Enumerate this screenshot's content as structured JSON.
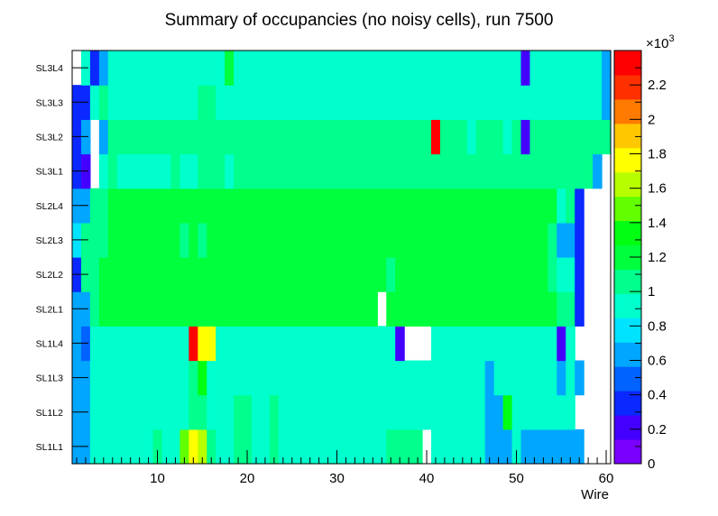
{
  "chart_data": {
    "type": "heatmap",
    "title": "Summary of occupancies (no noisy cells), run 7500",
    "xlabel": "Wire",
    "ylabel": "",
    "x_range": [
      0.5,
      60.5
    ],
    "xticks": [
      10,
      20,
      30,
      40,
      50,
      60
    ],
    "xtick_labels": [
      "10",
      "20",
      "30",
      "40",
      "50",
      "60"
    ],
    "y_categories": [
      "SL1L1",
      "SL1L2",
      "SL1L3",
      "SL1L4",
      "SL2L1",
      "SL2L2",
      "SL2L3",
      "SL2L4",
      "SL3L1",
      "SL3L2",
      "SL3L3",
      "SL3L4"
    ],
    "z_range": [
      0,
      2400
    ],
    "z_multiplier_label": "×10",
    "z_multiplier_exp": "3",
    "zticks": [
      0,
      200,
      400,
      600,
      800,
      1000,
      1200,
      1400,
      1600,
      1800,
      2000,
      2200
    ],
    "ztick_labels": [
      "0",
      "0.2",
      "0.4",
      "0.6",
      "0.8",
      "1",
      "1.2",
      "1.4",
      "1.6",
      "1.8",
      "2",
      "2.2"
    ],
    "palette": [
      "#7a00ff",
      "#4400ff",
      "#0a28ff",
      "#0062ff",
      "#00a6ff",
      "#00e3ff",
      "#00ffcd",
      "#00ff8c",
      "#00ff3d",
      "#00ff12",
      "#62ff00",
      "#b7ff00",
      "#ffff00",
      "#ffc700",
      "#ff7a00",
      "#ff3000",
      "#ff0000"
    ],
    "rows": [
      [
        700,
        600,
        850,
        900,
        950,
        950,
        950,
        950,
        950,
        1000,
        950,
        950,
        1450,
        1800,
        1650,
        1000,
        950,
        950,
        1000,
        1000,
        950,
        950,
        1000,
        950,
        950,
        950,
        950,
        950,
        950,
        950,
        950,
        950,
        950,
        900,
        950,
        1000,
        1000,
        1000,
        1000,
        null,
        850,
        950,
        950,
        950,
        950,
        950,
        700,
        650,
        700,
        950,
        650,
        650,
        650,
        650,
        650,
        650,
        600,
        null,
        null,
        null
      ],
      [
        650,
        650,
        850,
        900,
        950,
        950,
        950,
        950,
        950,
        950,
        950,
        950,
        950,
        1000,
        1000,
        950,
        950,
        950,
        1000,
        1000,
        950,
        950,
        1000,
        950,
        950,
        950,
        950,
        950,
        950,
        950,
        950,
        950,
        950,
        950,
        950,
        950,
        950,
        950,
        950,
        950,
        950,
        950,
        950,
        950,
        950,
        950,
        700,
        650,
        1350,
        950,
        950,
        850,
        850,
        850,
        850,
        850,
        null,
        null,
        null,
        null
      ],
      [
        650,
        650,
        850,
        950,
        950,
        950,
        950,
        950,
        950,
        950,
        950,
        950,
        950,
        1000,
        1400,
        950,
        950,
        950,
        950,
        950,
        950,
        950,
        950,
        950,
        950,
        950,
        950,
        950,
        950,
        950,
        950,
        950,
        950,
        950,
        950,
        950,
        950,
        950,
        950,
        950,
        950,
        950,
        950,
        950,
        950,
        950,
        700,
        950,
        950,
        950,
        850,
        850,
        850,
        850,
        700,
        850,
        650,
        null,
        null,
        null
      ],
      [
        700,
        500,
        850,
        900,
        850,
        850,
        950,
        950,
        950,
        950,
        950,
        950,
        950,
        2400,
        1750,
        1700,
        950,
        950,
        950,
        900,
        950,
        950,
        950,
        950,
        950,
        950,
        950,
        950,
        950,
        950,
        950,
        950,
        950,
        950,
        950,
        950,
        250,
        null,
        null,
        null,
        950,
        950,
        950,
        950,
        950,
        950,
        850,
        950,
        850,
        850,
        850,
        850,
        850,
        850,
        250,
        850,
        null,
        null,
        null,
        null
      ],
      [
        700,
        700,
        1100,
        1150,
        1250,
        1250,
        1250,
        1250,
        1250,
        1250,
        1250,
        1250,
        1250,
        1250,
        1250,
        1250,
        1250,
        1250,
        1250,
        1250,
        1250,
        1250,
        1250,
        1250,
        1250,
        1200,
        1250,
        1250,
        1250,
        1250,
        1250,
        1250,
        1250,
        1250,
        null,
        1250,
        1250,
        1200,
        1250,
        1250,
        1250,
        1250,
        1250,
        1250,
        1250,
        1250,
        1250,
        1250,
        1250,
        1250,
        1250,
        1250,
        1250,
        1250,
        1100,
        1100,
        350,
        null,
        null,
        null
      ],
      [
        350,
        1000,
        1100,
        1150,
        1250,
        1250,
        1200,
        1250,
        1250,
        1250,
        1250,
        1250,
        1250,
        1250,
        1250,
        1250,
        1250,
        1250,
        1250,
        1250,
        1250,
        1250,
        1250,
        1250,
        1250,
        1250,
        1250,
        1250,
        1250,
        1250,
        1250,
        1250,
        1250,
        1250,
        1250,
        1100,
        1250,
        1250,
        1250,
        1250,
        1250,
        1250,
        1250,
        1250,
        1250,
        1250,
        1250,
        1250,
        1250,
        1250,
        1250,
        1250,
        1250,
        1100,
        950,
        950,
        350,
        null,
        null,
        null
      ],
      [
        800,
        1100,
        1100,
        1100,
        1150,
        1150,
        1150,
        1150,
        1150,
        1200,
        1250,
        1250,
        1100,
        1200,
        1100,
        1250,
        1250,
        1250,
        1250,
        1250,
        1250,
        1250,
        1250,
        1250,
        1250,
        1250,
        1250,
        1250,
        1250,
        1250,
        1250,
        1250,
        1250,
        1250,
        1250,
        1250,
        1250,
        1250,
        1250,
        1250,
        1250,
        1250,
        1250,
        1250,
        1250,
        1250,
        1250,
        1250,
        1250,
        1250,
        1250,
        1250,
        1250,
        1100,
        650,
        600,
        350,
        null,
        null,
        null
      ],
      [
        700,
        600,
        1100,
        1100,
        1150,
        1150,
        1200,
        1250,
        1150,
        1250,
        1250,
        1250,
        1250,
        1250,
        1250,
        1250,
        1250,
        1250,
        1250,
        1250,
        1250,
        1250,
        1250,
        1250,
        1250,
        1250,
        1250,
        1250,
        1250,
        1250,
        1250,
        1250,
        1250,
        1250,
        1250,
        1250,
        1250,
        1250,
        1250,
        1250,
        1250,
        1250,
        1250,
        1250,
        1250,
        1250,
        1250,
        1250,
        1250,
        1250,
        1250,
        1250,
        1250,
        1150,
        950,
        1050,
        350,
        null,
        null,
        null
      ],
      [
        350,
        250,
        null,
        950,
        1000,
        950,
        950,
        950,
        950,
        950,
        950,
        1000,
        950,
        950,
        1000,
        1100,
        1000,
        950,
        1000,
        1100,
        1000,
        1000,
        1000,
        1000,
        1000,
        1000,
        1000,
        1000,
        1050,
        1000,
        1000,
        1000,
        1000,
        1000,
        1000,
        1000,
        1000,
        1000,
        1000,
        1000,
        1000,
        1000,
        1000,
        1000,
        1000,
        1000,
        1000,
        1000,
        1000,
        1000,
        1000,
        1000,
        1000,
        1000,
        1000,
        1000,
        1000,
        1000,
        600,
        null
      ],
      [
        300,
        700,
        null,
        700,
        1000,
        1000,
        1000,
        1000,
        1000,
        1000,
        1000,
        1000,
        1000,
        1000,
        1000,
        1000,
        1000,
        1000,
        1000,
        1000,
        1000,
        1000,
        1000,
        1000,
        1000,
        1000,
        1000,
        1000,
        1000,
        1000,
        1000,
        1000,
        1000,
        1000,
        1000,
        1000,
        1000,
        1000,
        1000,
        1000,
        2400,
        1000,
        1000,
        1000,
        850,
        1000,
        1000,
        1000,
        850,
        1000,
        200,
        1000,
        1000,
        1000,
        1000,
        1000,
        1000,
        1000,
        1000,
        1000
      ],
      [
        350,
        350,
        850,
        1000,
        950,
        950,
        950,
        950,
        950,
        950,
        950,
        950,
        950,
        950,
        1000,
        1000,
        950,
        950,
        950,
        950,
        950,
        950,
        950,
        950,
        950,
        950,
        950,
        950,
        950,
        950,
        900,
        950,
        950,
        950,
        950,
        950,
        950,
        950,
        950,
        950,
        950,
        950,
        950,
        950,
        950,
        950,
        950,
        950,
        850,
        950,
        950,
        850,
        950,
        950,
        950,
        950,
        950,
        950,
        950,
        700
      ],
      [
        null,
        850,
        350,
        700,
        950,
        950,
        950,
        950,
        950,
        950,
        950,
        950,
        950,
        950,
        950,
        950,
        950,
        1150,
        950,
        950,
        950,
        950,
        950,
        950,
        950,
        950,
        950,
        950,
        950,
        950,
        950,
        950,
        950,
        950,
        950,
        950,
        950,
        950,
        950,
        950,
        950,
        950,
        950,
        950,
        900,
        950,
        950,
        950,
        950,
        950,
        200,
        850,
        950,
        950,
        950,
        950,
        950,
        950,
        950,
        600
      ]
    ]
  }
}
